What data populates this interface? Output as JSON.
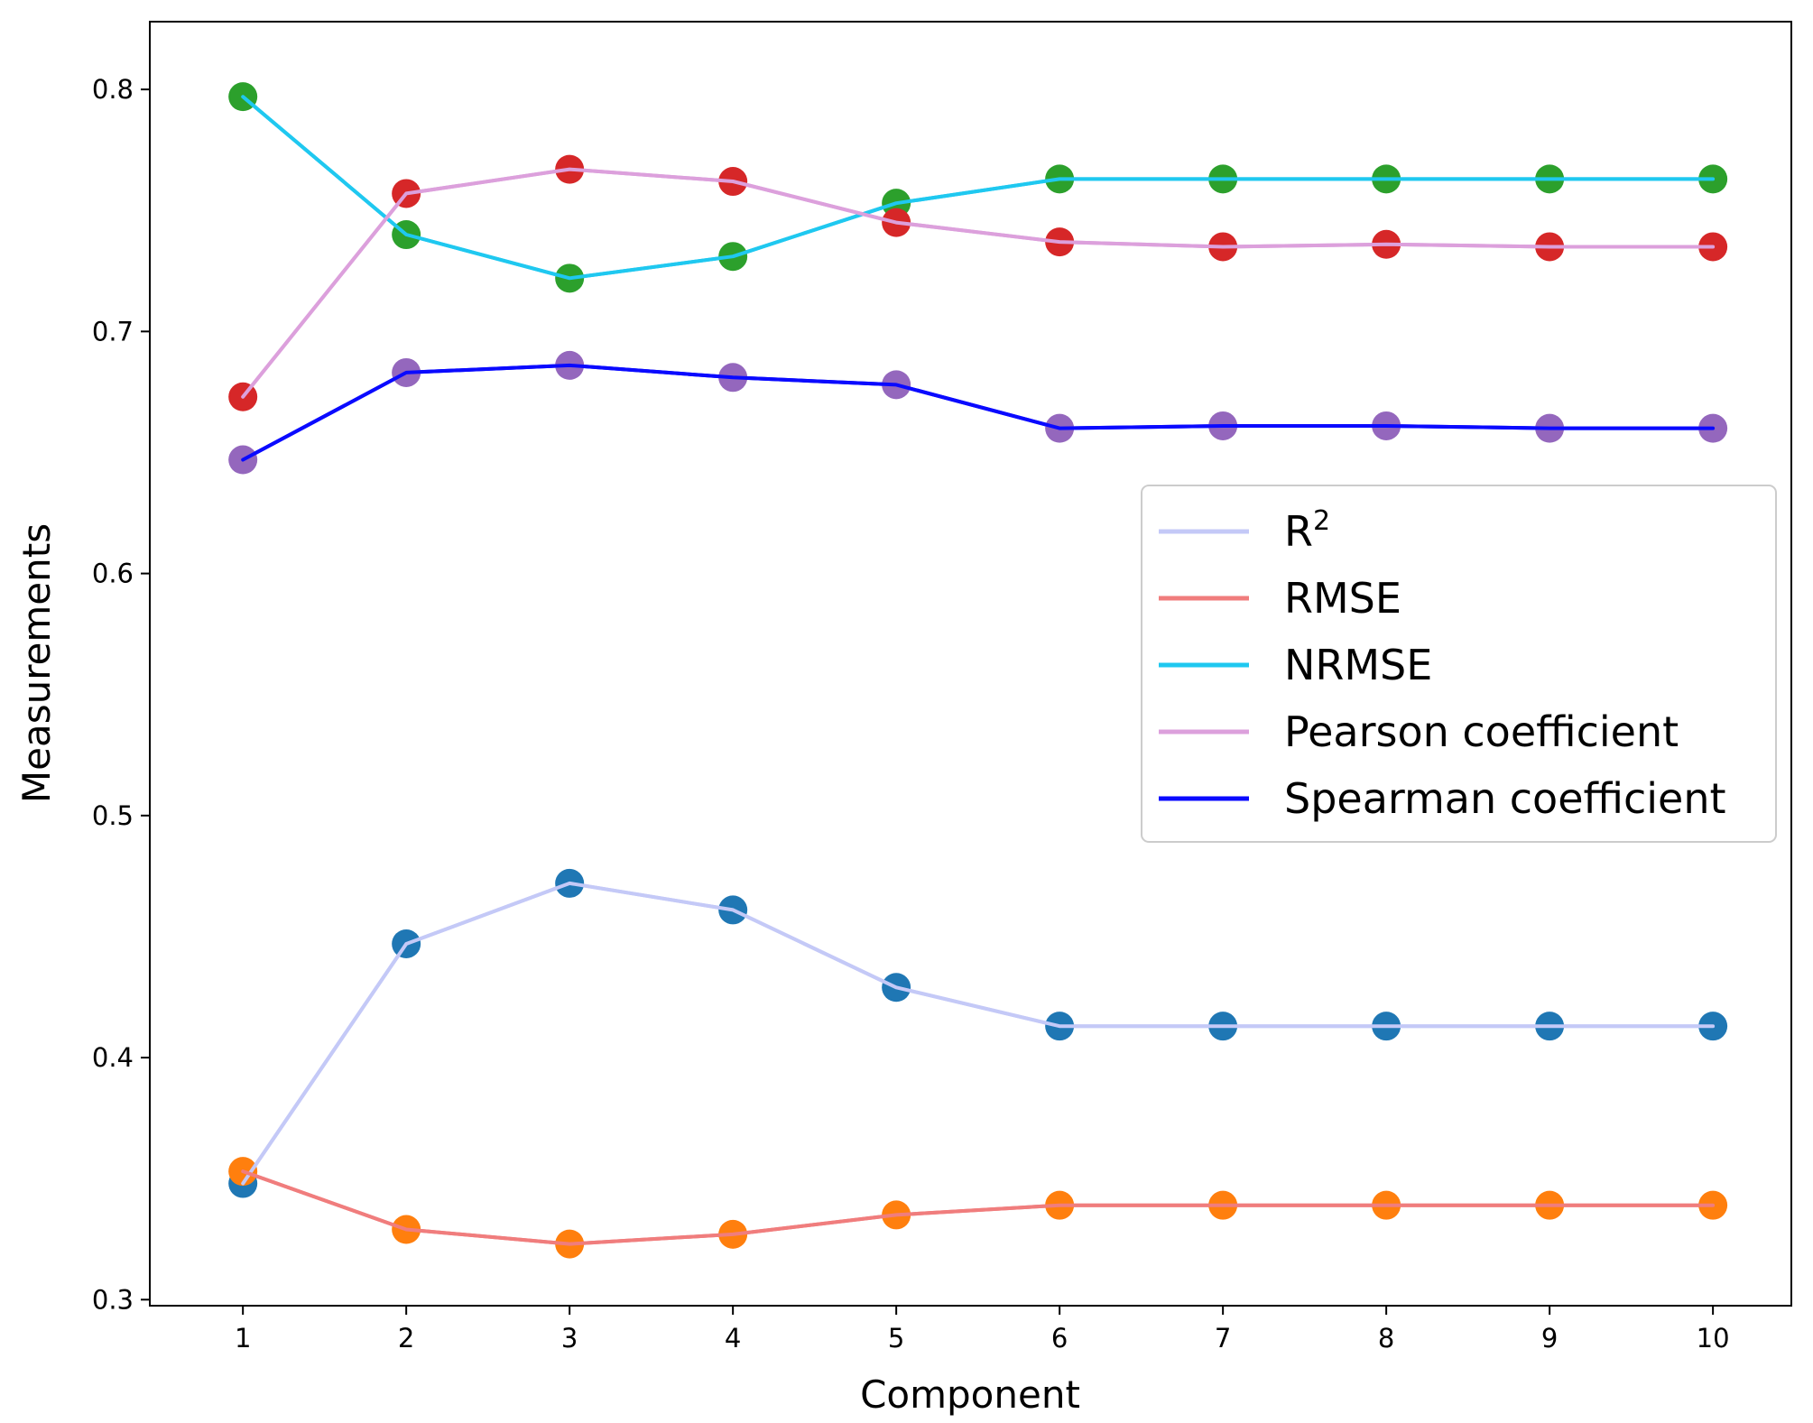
{
  "chart_data": {
    "type": "line",
    "title": "",
    "xlabel": "Component",
    "ylabel": "Measurements",
    "x": [
      1,
      2,
      3,
      4,
      5,
      6,
      7,
      8,
      9,
      10
    ],
    "xticks": [
      "1",
      "2",
      "3",
      "4",
      "5",
      "6",
      "7",
      "8",
      "9",
      "10"
    ],
    "yticks": [
      "0.3",
      "0.4",
      "0.5",
      "0.6",
      "0.7",
      "0.8"
    ],
    "xlim": [
      0.43,
      10.48
    ],
    "ylim": [
      0.2975,
      0.828
    ],
    "grid": false,
    "legend_position": "center-right",
    "series": [
      {
        "name": "R",
        "sup": "2",
        "line_color": "#c4c9f7",
        "marker_color": "#1f77b4",
        "values": [
          0.348,
          0.447,
          0.472,
          0.461,
          0.429,
          0.413,
          0.413,
          0.413,
          0.413,
          0.413
        ]
      },
      {
        "name": "RMSE",
        "line_color": "#f07d7d",
        "marker_color": "#ff7f0e",
        "values": [
          0.353,
          0.329,
          0.323,
          0.327,
          0.335,
          0.339,
          0.339,
          0.339,
          0.339,
          0.339
        ]
      },
      {
        "name": "NRMSE",
        "line_color": "#1fc8f0",
        "marker_color": "#2ca02c",
        "values": [
          0.797,
          0.74,
          0.722,
          0.731,
          0.753,
          0.763,
          0.763,
          0.763,
          0.763,
          0.763
        ]
      },
      {
        "name": "Pearson coefficient",
        "line_color": "#dca0dc",
        "marker_color": "#d62728",
        "values": [
          0.673,
          0.757,
          0.767,
          0.762,
          0.745,
          0.737,
          0.735,
          0.736,
          0.735,
          0.735
        ]
      },
      {
        "name": "Spearman coefficient",
        "line_color": "#0a0aff",
        "marker_color": "#9467bd",
        "values": [
          0.647,
          0.683,
          0.686,
          0.681,
          0.678,
          0.66,
          0.661,
          0.661,
          0.66,
          0.66
        ]
      }
    ]
  }
}
